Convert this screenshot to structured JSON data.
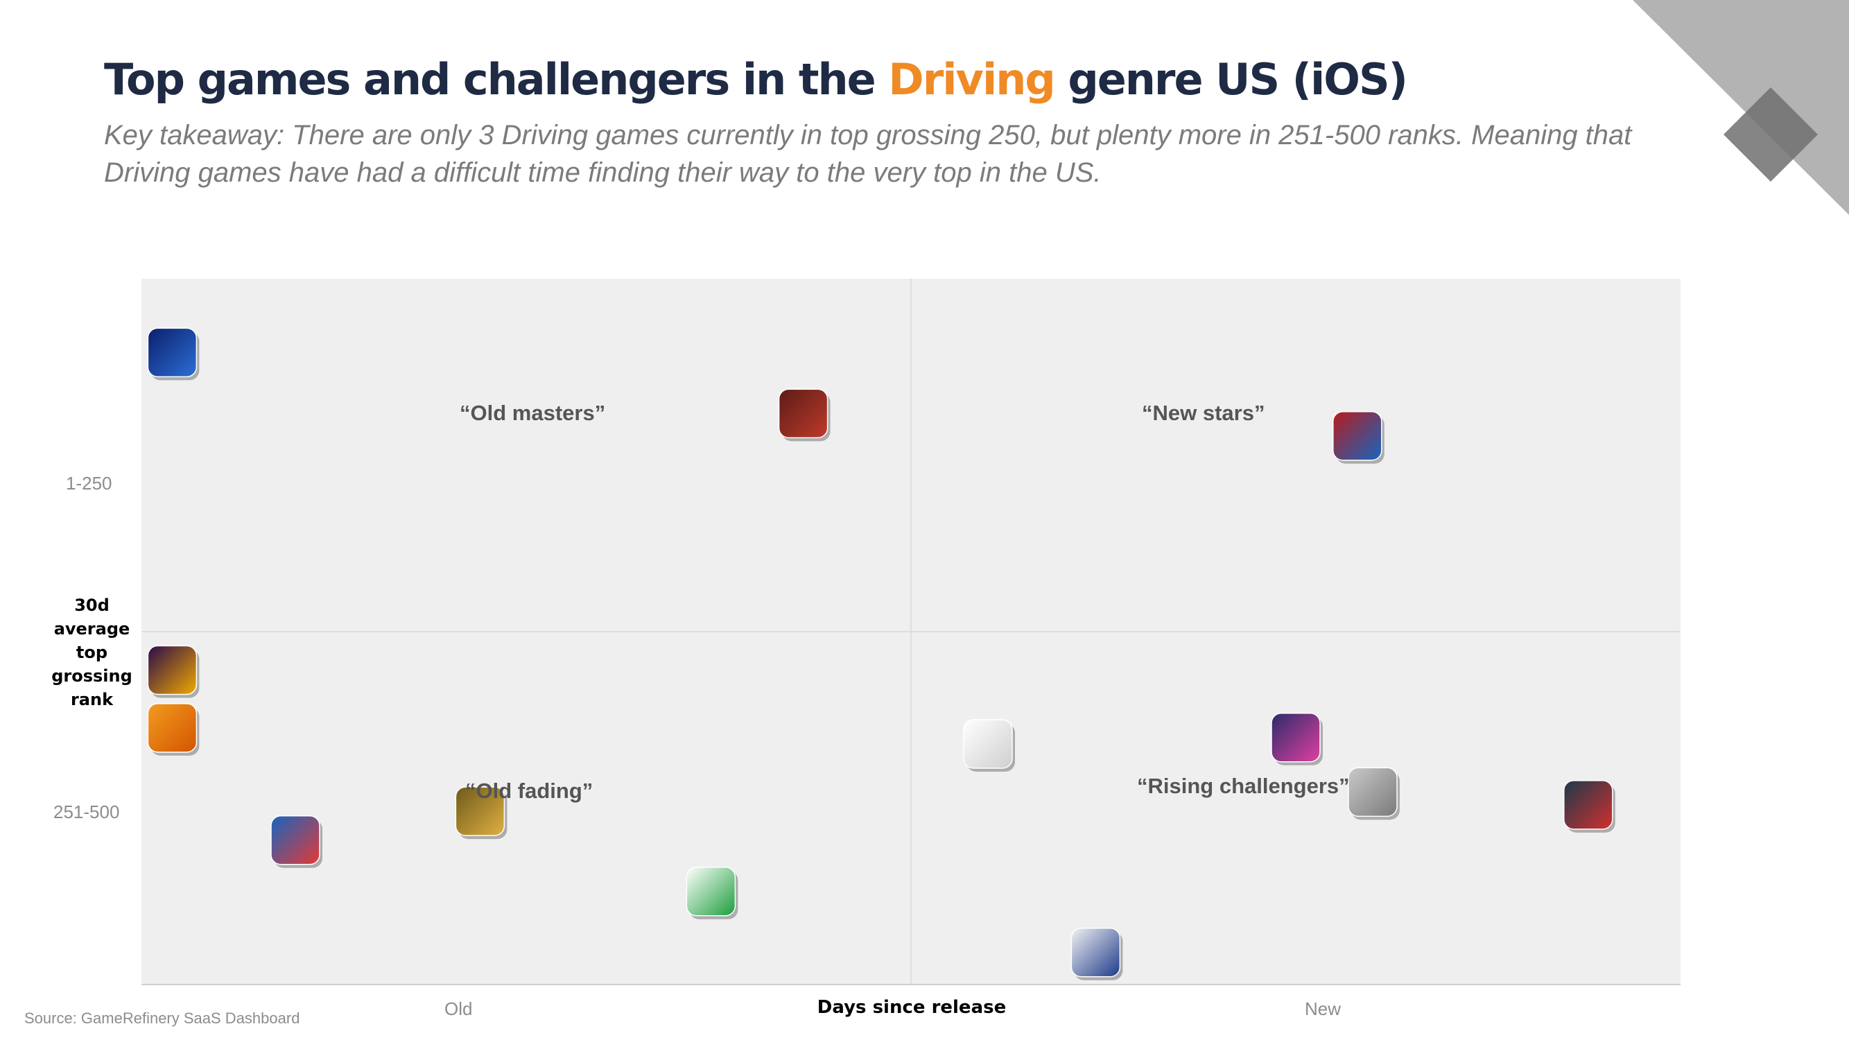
{
  "header": {
    "title_pre": "Top games and challengers in the",
    "title_highlight": "Driving",
    "title_post": "genre US (iOS)",
    "highlight_color": "#f08a24",
    "subtitle": "Key takeaway: There are only 3 Driving games currently in top grossing 250, but plenty more in 251-500 ranks. Meaning that Driving games have had a difficult time finding their way to the very top in the US."
  },
  "source": "Source: GameRefinery SaaS Dashboard",
  "chart_data": {
    "type": "scatter",
    "title": "Top games and challengers in the Driving genre US (iOS)",
    "xlabel": "Days since release",
    "ylabel": "30d average top grossing rank",
    "x_ticks": [
      "Old",
      "New"
    ],
    "y_ticks": [
      "1-250",
      "251-500"
    ],
    "quadrant_labels": {
      "top_left": "“Old masters”",
      "top_right": "“New stars”",
      "bottom_left": "“Old fading”",
      "bottom_right": "“Rising challengers”"
    },
    "points": [
      {
        "icon": "CSR2",
        "x": 0.02,
        "y": 0.87
      },
      {
        "icon": "truck",
        "x": 0.43,
        "y": 0.68
      },
      {
        "icon": "1ST",
        "x": 0.79,
        "y": 0.61
      },
      {
        "icon": "NEED FOR SPEED",
        "x": 0.02,
        "y": -0.12
      },
      {
        "icon": "bike",
        "x": 0.02,
        "y": -0.3
      },
      {
        "icon": "ASPHALT",
        "x": 0.55,
        "y": -0.35
      },
      {
        "icon": "HASHIRIYA",
        "x": 0.75,
        "y": -0.33
      },
      {
        "icon": "car",
        "x": 0.8,
        "y": -0.5
      },
      {
        "icon": "truck race",
        "x": 0.94,
        "y": -0.54
      },
      {
        "icon": "RS2",
        "x": 0.1,
        "y": -0.65
      },
      {
        "icon": "racer 2",
        "x": 0.22,
        "y": -0.56
      },
      {
        "icon": "DRIVES",
        "x": 0.37,
        "y": -0.81
      },
      {
        "icon": "DRIFT RACING",
        "x": 0.62,
        "y": -1.0
      }
    ],
    "xlim": [
      0,
      1
    ],
    "ylim": [
      -1.1,
      1.1
    ],
    "grid": false,
    "legend": "none",
    "background_color": "#efefef",
    "axis_line_color": "#cfcfcf"
  }
}
